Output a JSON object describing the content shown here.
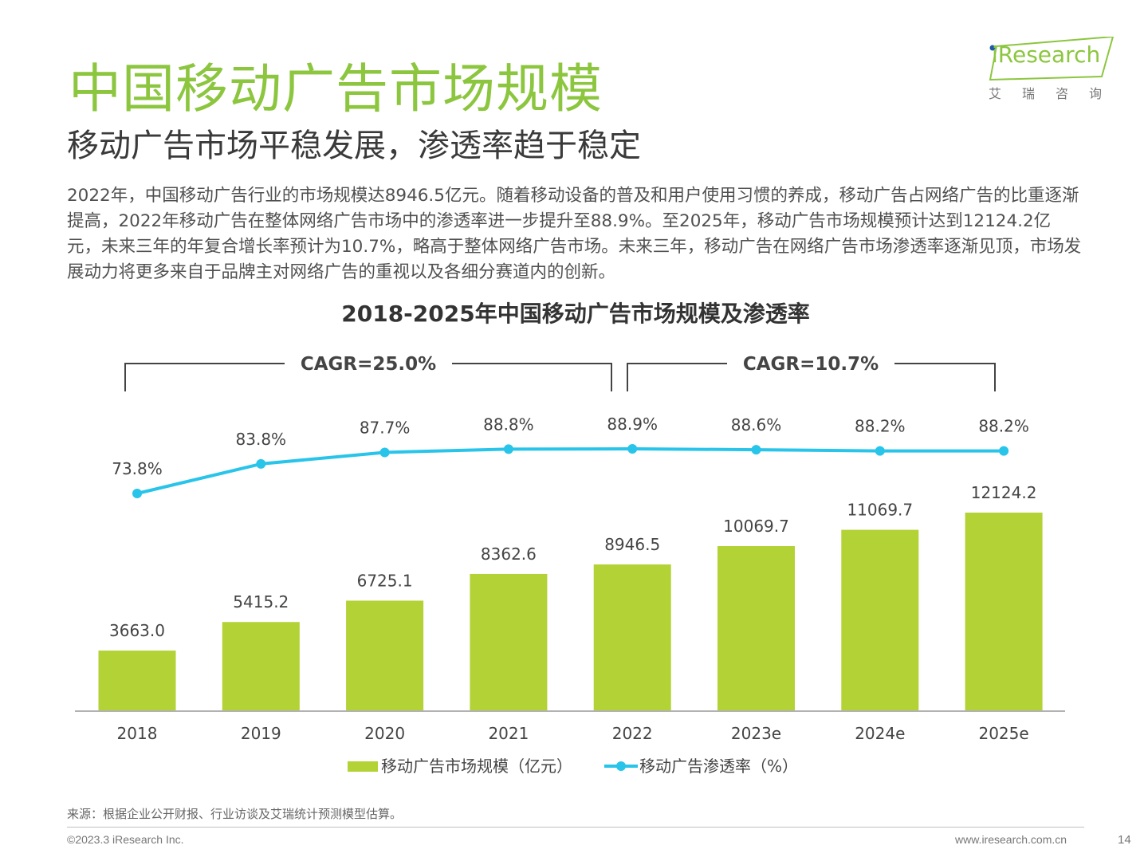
{
  "page": {
    "title": "中国移动广告市场规模",
    "subtitle": "移动广告市场平稳发展，渗透率趋于稳定",
    "body": "2022年，中国移动广告行业的市场规模达8946.5亿元。随着移动设备的普及和用户使用习惯的养成，移动广告占网络广告的比重逐渐提高，2022年移动广告在整体网络广告市场中的渗透率进一步提升至88.9%。至2025年，移动广告市场规模预计达到12124.2亿元，未来三年的年复合增长率预计为10.7%，略高于整体网络广告市场。未来三年，移动广告在网络广告市场渗透率逐渐见顶，市场发展动力将更多来自于品牌主对网络广告的重视以及各细分赛道内的创新。"
  },
  "logo": {
    "word": "iResearch",
    "cn": "艾瑞咨询"
  },
  "chart_data": {
    "type": "bar",
    "title": "2018-2025年中国移动广告市场规模及渗透率",
    "categories": [
      "2018",
      "2019",
      "2020",
      "2021",
      "2022",
      "2023e",
      "2024e",
      "2025e"
    ],
    "series": [
      {
        "name": "移动广告市场规模（亿元）",
        "type": "bar",
        "color": "#b2d235",
        "values": [
          3663.0,
          5415.2,
          6725.1,
          8362.6,
          8946.5,
          10069.7,
          11069.7,
          12124.2
        ],
        "labels": [
          "3663.0",
          "5415.2",
          "6725.1",
          "8362.6",
          "8946.5",
          "10069.7",
          "11069.7",
          "12124.2"
        ]
      },
      {
        "name": "移动广告渗透率（%）",
        "type": "line",
        "color": "#29c4ea",
        "values": [
          73.8,
          83.8,
          87.7,
          88.8,
          88.9,
          88.6,
          88.2,
          88.2
        ],
        "labels": [
          "73.8%",
          "83.8%",
          "87.7%",
          "88.8%",
          "88.9%",
          "88.6%",
          "88.2%",
          "88.2%"
        ]
      }
    ],
    "annotations": [
      {
        "text": "CAGR=25.0%",
        "from": "2018",
        "to": "2022"
      },
      {
        "text": "CAGR=10.7%",
        "from": "2022",
        "to": "2025e"
      }
    ],
    "bar_range": [
      0,
      12124.2
    ],
    "line_range": [
      73.8,
      88.9
    ],
    "legend_position": "bottom-center"
  },
  "footer": {
    "source": "来源：根据企业公开财报、行业访谈及艾瑞统计预测模型估算。",
    "copyright": "©2023.3 iResearch Inc.",
    "website": "www.iresearch.com.cn",
    "page_number": "14"
  }
}
